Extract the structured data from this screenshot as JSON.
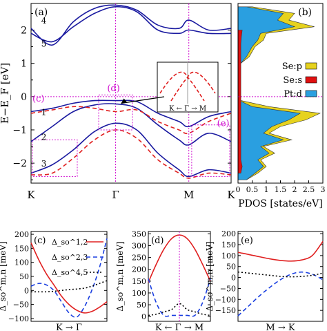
{
  "chart_data": [
    {
      "type": "line",
      "panel_label": "(a)",
      "ylabel": "E−E_F [eV]",
      "ylim": [
        -2.6,
        2.8
      ],
      "yticks": [
        "−2",
        "−1",
        "0",
        "1",
        "2"
      ],
      "xticks": [
        "K",
        "Γ",
        "M",
        "K"
      ],
      "x_path": [
        0,
        1,
        1.866,
        2.366
      ],
      "band_labels": [
        "4",
        "5",
        "1",
        "2",
        "3"
      ],
      "region_labels": [
        "(c)",
        "(d)",
        "(e)"
      ],
      "inset_xlabel": "K ← Γ → M",
      "series": [
        {
          "style": "solid-blue",
          "x": [
            0,
            0.25,
            0.5,
            0.75,
            1.0,
            1.25,
            1.5,
            1.75,
            1.866,
            2.1,
            2.366
          ],
          "values": [
            2.05,
            1.55,
            2.25,
            2.65,
            2.75,
            2.6,
            2.15,
            2.05,
            2.3,
            2.0,
            2.05
          ]
        },
        {
          "style": "solid-blue",
          "x": [
            0,
            0.25,
            0.5,
            0.75,
            1.0,
            1.25,
            1.5,
            1.75,
            1.866,
            2.1,
            2.366
          ],
          "values": [
            1.9,
            1.65,
            2.1,
            2.5,
            2.7,
            2.55,
            2.0,
            1.9,
            2.0,
            1.9,
            1.9
          ]
        },
        {
          "style": "solid-blue",
          "x": [
            0,
            0.25,
            0.5,
            0.75,
            1.0,
            1.25,
            1.5,
            1.75,
            1.866,
            2.1,
            2.366
          ],
          "values": [
            -0.45,
            -0.35,
            -0.2,
            -0.12,
            -0.12,
            -0.15,
            -0.5,
            -0.75,
            -0.9,
            -0.6,
            -0.45
          ]
        },
        {
          "style": "solid-blue",
          "x": [
            0,
            0.25,
            0.5,
            0.75,
            1.0,
            1.25,
            1.5,
            1.75,
            1.866,
            2.1,
            2.366
          ],
          "values": [
            -1.35,
            -0.9,
            -0.45,
            -0.25,
            -0.22,
            -0.35,
            -0.85,
            -1.3,
            -1.45,
            -1.1,
            -1.35
          ]
        },
        {
          "style": "solid-blue",
          "x": [
            0,
            0.25,
            0.5,
            0.75,
            1.0,
            1.25,
            1.5,
            1.75,
            1.866,
            2.1,
            2.366
          ],
          "values": [
            -2.3,
            -2.05,
            -1.6,
            -1.05,
            -0.8,
            -1.0,
            -1.7,
            -2.2,
            -2.4,
            -2.2,
            -2.3
          ]
        },
        {
          "style": "dashed-red",
          "x": [
            0,
            0.25,
            0.5,
            0.75,
            1.0,
            1.25,
            1.5,
            1.75,
            1.866,
            2.1,
            2.366
          ],
          "values": [
            -0.5,
            -0.4,
            -0.3,
            -0.35,
            -0.45,
            -0.4,
            -0.75,
            -1.0,
            -1.1,
            -0.75,
            -0.5
          ]
        },
        {
          "style": "dashed-red",
          "x": [
            0,
            0.25,
            0.5,
            0.75,
            1.0,
            1.25,
            1.5,
            1.75,
            1.866,
            2.1,
            2.366
          ],
          "values": [
            -2.35,
            -2.3,
            -1.85,
            -1.3,
            -1.0,
            -1.25,
            -1.9,
            -2.3,
            -2.45,
            -2.3,
            -2.35
          ]
        }
      ]
    },
    {
      "type": "area",
      "panel_label": "(b)",
      "xlabel": "PDOS [states/eV]",
      "xlim": [
        0,
        3
      ],
      "xticks": [
        "0",
        "0.5",
        "1",
        "1.5",
        "2",
        "2.5",
        "3"
      ],
      "legend": [
        "Se:p",
        "Se:s",
        "Pt:d"
      ],
      "legend_position": "right",
      "colors": {
        "Se:p": "#e6d21e",
        "Se:s": "#e01010",
        "Pt:d": "#2a9fe0"
      },
      "series": [
        {
          "name": "Pt:d",
          "energy": [
            2.7,
            2.5,
            2.3,
            2.1,
            1.9,
            1.7,
            1.5,
            1.2,
            1.0,
            0.9,
            -0.1,
            -0.3,
            -0.5,
            -0.7,
            -0.9,
            -1.1,
            -1.3,
            -1.5,
            -1.7,
            -1.9,
            -2.1,
            -2.3,
            -2.5
          ],
          "values": [
            0.3,
            1.6,
            1.4,
            2.0,
            0.8,
            0.7,
            0.5,
            0.3,
            0.1,
            0.0,
            0.0,
            0.5,
            2.2,
            1.8,
            1.2,
            0.9,
            1.6,
            0.8,
            1.1,
            0.7,
            0.9,
            0.6,
            0.3
          ]
        },
        {
          "name": "Se:p",
          "energy": [
            2.7,
            2.5,
            2.3,
            2.1,
            1.9,
            1.7,
            1.5,
            1.2,
            1.0,
            0.9,
            -0.1,
            -0.3,
            -0.5,
            -0.7,
            -0.9,
            -1.1,
            -1.3,
            -1.5,
            -1.7,
            -1.9,
            -2.1,
            -2.3,
            -2.5
          ],
          "values": [
            0.5,
            2.0,
            1.8,
            2.7,
            1.0,
            0.9,
            0.6,
            0.4,
            0.1,
            0.0,
            0.0,
            1.1,
            2.9,
            2.4,
            1.5,
            1.1,
            1.9,
            0.9,
            1.3,
            0.8,
            1.0,
            0.7,
            0.3
          ]
        },
        {
          "name": "Se:s",
          "energy": [
            2.0,
            1.8,
            1.6,
            -1.9,
            -2.1,
            -2.3
          ],
          "values": [
            0.15,
            0.12,
            0.1,
            0.1,
            0.15,
            0.1
          ]
        }
      ]
    },
    {
      "type": "line",
      "panel_label": "(c)",
      "ylabel": "Δ_so^m,n [meV]",
      "ylim": [
        -110,
        210
      ],
      "yticks": [
        "−100",
        "−50",
        "0",
        "50",
        "100",
        "150",
        "200"
      ],
      "xlabel": "K → Γ",
      "legend": [
        "Δ_so^1,2",
        "Δ_so^2,3",
        "Δ_so^4,5"
      ],
      "series": [
        {
          "name": "Δ_so^1,2",
          "x": [
            0,
            0.1,
            0.2,
            0.3,
            0.4,
            0.5,
            0.6,
            0.7,
            0.8,
            0.9,
            1.0
          ],
          "values": [
            170,
            110,
            60,
            20,
            -20,
            -50,
            -70,
            -80,
            -75,
            -60,
            -40
          ]
        },
        {
          "name": "Δ_so^2,3",
          "x": [
            0,
            0.1,
            0.2,
            0.3,
            0.4,
            0.5,
            0.6,
            0.7,
            0.8,
            0.9,
            1.0
          ],
          "values": [
            15,
            25,
            20,
            0,
            -40,
            -80,
            -95,
            -60,
            0,
            80,
            185
          ]
        },
        {
          "name": "Δ_so^4,5",
          "x": [
            0,
            0.1,
            0.2,
            0.3,
            0.4,
            0.5,
            0.6,
            0.7,
            0.8,
            0.9,
            1.0
          ],
          "values": [
            -5,
            -5,
            -5,
            -3,
            0,
            3,
            5,
            8,
            15,
            25,
            35
          ]
        }
      ]
    },
    {
      "type": "line",
      "panel_label": "(d)",
      "ylabel": "Δ_so^m,n [meV]",
      "ylim": [
        -20,
        360
      ],
      "yticks": [
        "0",
        "50",
        "100",
        "150",
        "200",
        "250",
        "300",
        "350"
      ],
      "xlabel": "K ← Γ → M",
      "series": [
        {
          "style": "solid-red",
          "x": [
            -1,
            -0.75,
            -0.5,
            -0.25,
            0,
            0.25,
            0.5,
            0.75,
            1
          ],
          "values": [
            145,
            220,
            285,
            330,
            345,
            330,
            285,
            220,
            150
          ]
        },
        {
          "style": "dashed-blue",
          "x": [
            -1,
            -0.75,
            -0.5,
            -0.25,
            0,
            0.25,
            0.5,
            0.75,
            1
          ],
          "values": [
            160,
            60,
            5,
            5,
            5,
            5,
            5,
            60,
            160
          ]
        },
        {
          "style": "dotted-black",
          "x": [
            -1,
            -0.75,
            -0.5,
            -0.25,
            0,
            0.25,
            0.5,
            0.75,
            1
          ],
          "values": [
            5,
            10,
            20,
            30,
            55,
            30,
            20,
            10,
            5
          ]
        }
      ]
    },
    {
      "type": "line",
      "panel_label": "(e)",
      "ylabel": "Δ_so^m,n [meV]",
      "ylim": [
        -200,
        210
      ],
      "yticks": [
        "−150",
        "−100",
        "−50",
        "0",
        "50",
        "100",
        "150",
        "200"
      ],
      "xlabel": "M → K",
      "series": [
        {
          "style": "solid-red",
          "x": [
            0,
            0.125,
            0.25,
            0.375,
            0.5,
            0.625,
            0.75,
            0.875,
            1.0
          ],
          "values": [
            115,
            105,
            95,
            85,
            78,
            75,
            80,
            100,
            165
          ]
        },
        {
          "style": "dashed-blue",
          "x": [
            0,
            0.125,
            0.25,
            0.375,
            0.5,
            0.625,
            0.75,
            0.875,
            1.0
          ],
          "values": [
            -175,
            -130,
            -85,
            -45,
            -10,
            15,
            25,
            15,
            -10
          ]
        },
        {
          "style": "dotted-black",
          "x": [
            0,
            0.125,
            0.25,
            0.375,
            0.5,
            0.625,
            0.75,
            0.875,
            1.0
          ],
          "values": [
            25,
            20,
            15,
            10,
            5,
            3,
            5,
            10,
            20
          ]
        }
      ]
    }
  ]
}
